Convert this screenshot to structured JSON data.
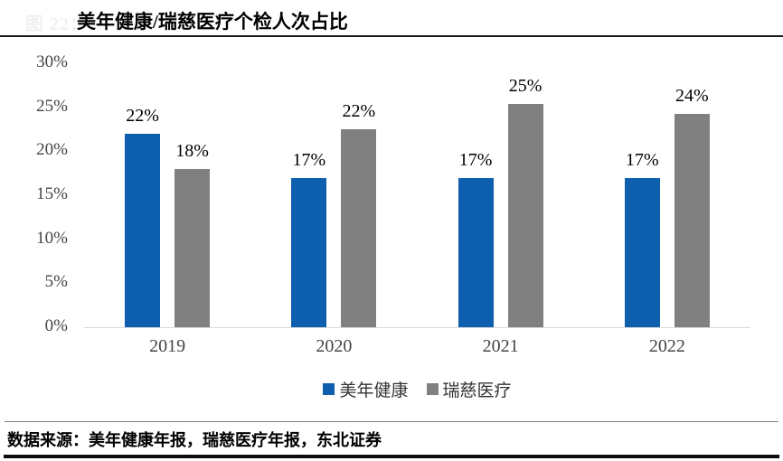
{
  "page": {
    "figure_label": "图 22：",
    "title": "美年健康/瑞慈医疗个检人次占比",
    "source_note": "数据来源：美年健康年报，瑞慈医疗年报，东北证券"
  },
  "colors": {
    "series1": "#0e5fae",
    "series2": "#808080",
    "axis_line": "#d9d9d9",
    "axis_text": "#444444",
    "data_label_text": "#000000"
  },
  "chart_data": {
    "type": "bar",
    "title": "美年健康/瑞慈医疗个检人次占比",
    "categories": [
      "2019",
      "2020",
      "2021",
      "2022"
    ],
    "series": [
      {
        "name": "美年健康",
        "color": "#0e5fae",
        "values": [
          22,
          17,
          17,
          17
        ],
        "labels": [
          "22%",
          "17%",
          "17%",
          "17%"
        ]
      },
      {
        "name": "瑞慈医疗",
        "color": "#808080",
        "values": [
          18,
          22.5,
          25.4,
          24.2
        ],
        "labels": [
          "18%",
          "22%",
          "25%",
          "24%"
        ]
      }
    ],
    "ylabel": "",
    "xlabel": "",
    "ylim": [
      0,
      30
    ],
    "yticks": [
      {
        "value": 0,
        "label": "0%"
      },
      {
        "value": 5,
        "label": "5%"
      },
      {
        "value": 10,
        "label": "10%"
      },
      {
        "value": 15,
        "label": "15%"
      },
      {
        "value": 20,
        "label": "20%"
      },
      {
        "value": 25,
        "label": "25%"
      },
      {
        "value": 30,
        "label": "30%"
      }
    ],
    "grid": false,
    "legend_position": "bottom"
  }
}
